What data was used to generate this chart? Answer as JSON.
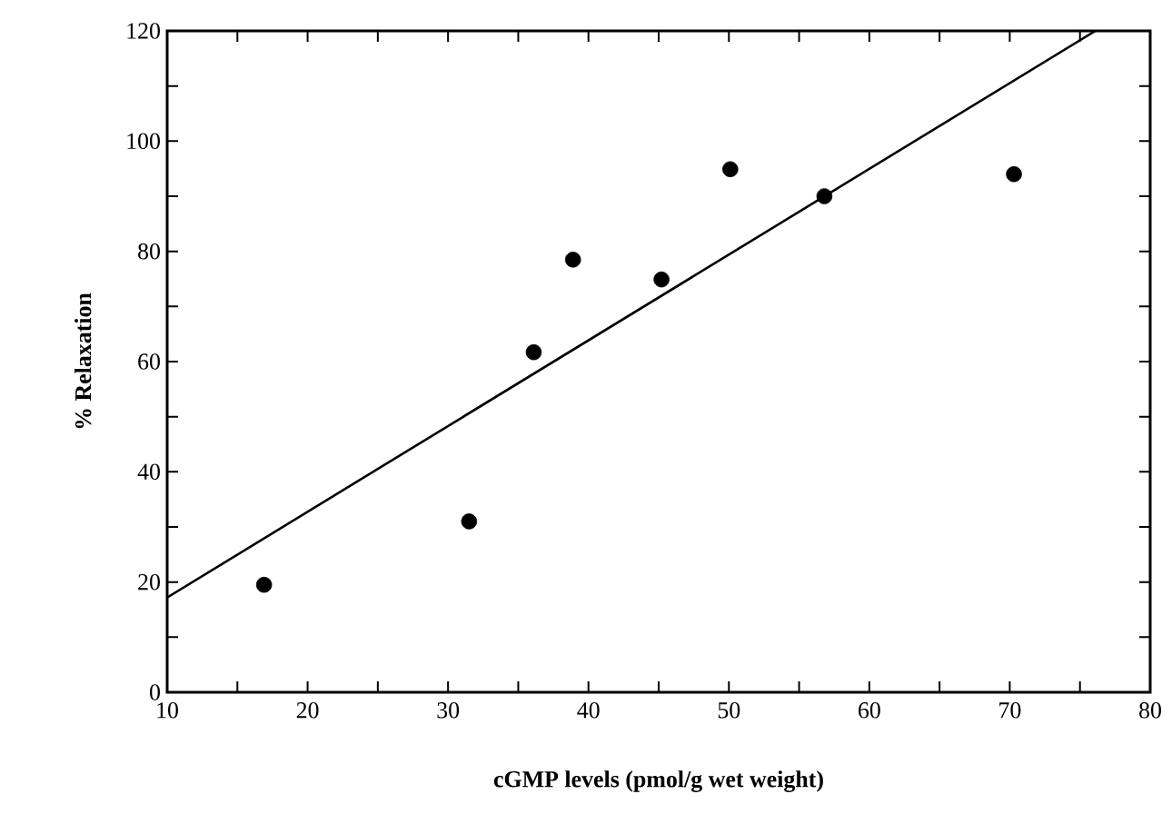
{
  "chart_data": {
    "type": "scatter",
    "xlabel": "cGMP levels (pmol/g wet weight)",
    "ylabel": "% Relaxation",
    "xlim": [
      10,
      80
    ],
    "ylim": [
      0,
      120
    ],
    "xticks": [
      10,
      {
        "value": 15,
        "label": null
      },
      20,
      {
        "value": 25,
        "label": null
      },
      30,
      {
        "value": 35,
        "label": null
      },
      40,
      {
        "value": 45,
        "label": null
      },
      50,
      {
        "value": 55,
        "label": null
      },
      60,
      {
        "value": 65,
        "label": null
      },
      70,
      {
        "value": 75,
        "label": null
      },
      80
    ],
    "yticks": [
      0,
      {
        "value": 10,
        "label": null
      },
      20,
      {
        "value": 30,
        "label": null
      },
      40,
      {
        "value": 50,
        "label": null
      },
      60,
      {
        "value": 70,
        "label": null
      },
      80,
      {
        "value": 90,
        "label": null
      },
      100,
      {
        "value": 110,
        "label": null
      },
      120
    ],
    "grid": false,
    "series": [
      {
        "color": "#000000",
        "marker": "circle",
        "x": [
          16.9,
          31.5,
          36.1,
          38.9,
          45.2,
          50.1,
          56.8,
          70.3
        ],
        "values": [
          19.5,
          31,
          61.7,
          78.5,
          74.9,
          94.9,
          90,
          94
        ]
      },
      {
        "type": "line",
        "color": "#000000",
        "line_style": "solid",
        "x": [
          10,
          76.1
        ],
        "values": [
          17.2,
          120
        ]
      }
    ]
  }
}
